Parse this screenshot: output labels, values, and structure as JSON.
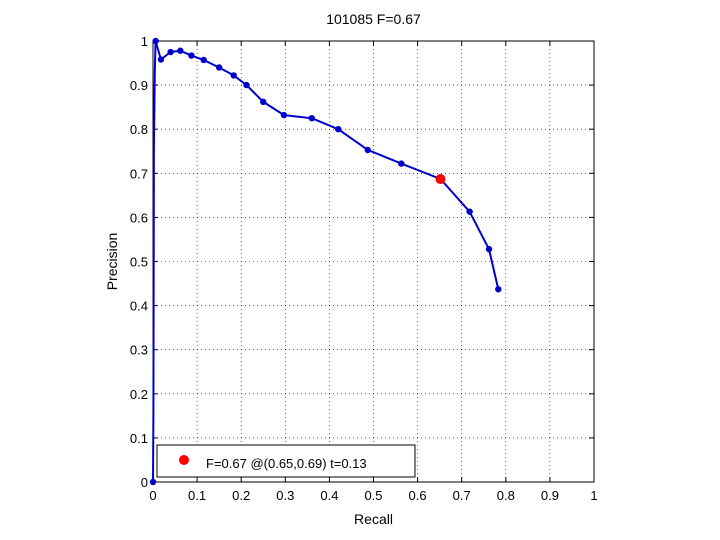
{
  "chart_data": {
    "type": "line",
    "title": "101085 F=0.67",
    "xlabel": "Recall",
    "ylabel": "Precision",
    "xlim": [
      0,
      1
    ],
    "ylim": [
      0,
      1
    ],
    "grid": true,
    "x_ticks": [
      "0",
      "0.1",
      "0.2",
      "0.3",
      "0.4",
      "0.5",
      "0.6",
      "0.7",
      "0.8",
      "0.9",
      "1"
    ],
    "y_ticks": [
      "0",
      "0.1",
      "0.2",
      "0.3",
      "0.4",
      "0.5",
      "0.6",
      "0.7",
      "0.8",
      "0.9",
      "1"
    ],
    "series": [
      {
        "color": "#0000cc",
        "marker": "dot",
        "x": [
          0.0,
          0.001,
          0.002,
          0.004,
          0.006,
          0.018,
          0.04,
          0.062,
          0.087,
          0.115,
          0.15,
          0.183,
          0.212,
          0.25,
          0.297,
          0.36,
          0.42,
          0.487,
          0.563,
          0.652,
          0.718,
          0.762,
          0.783
        ],
        "y": [
          0.0,
          0.15,
          0.75,
          0.93,
          1.0,
          0.958,
          0.975,
          0.978,
          0.967,
          0.957,
          0.94,
          0.922,
          0.9,
          0.862,
          0.832,
          0.825,
          0.8,
          0.753,
          0.722,
          0.687,
          0.613,
          0.528,
          0.437
        ],
        "marker_indices": [
          0,
          4,
          5,
          6,
          7,
          8,
          9,
          10,
          11,
          12,
          13,
          14,
          15,
          16,
          17,
          18,
          19,
          20,
          21,
          22
        ]
      }
    ],
    "highlight": {
      "x": 0.652,
      "y": 0.687,
      "color": "#ff0000"
    },
    "legend": {
      "position": "bottom-left",
      "text": "F=0.67 @(0.65,0.69) t=0.13",
      "marker_color": "#ff0000"
    }
  }
}
